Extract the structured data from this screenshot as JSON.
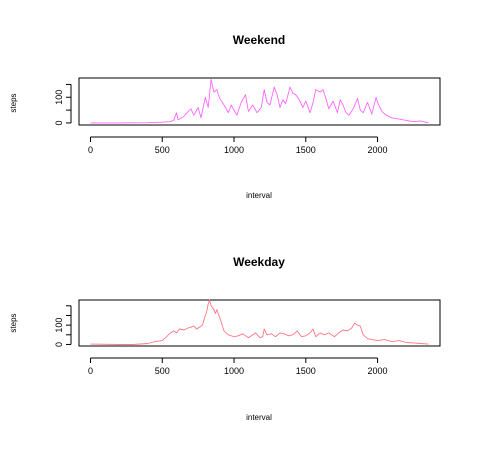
{
  "chart_data": [
    {
      "type": "line",
      "title": "Weekend",
      "xlabel": "interval",
      "ylabel": "steps",
      "xlim": [
        -80,
        2435
      ],
      "ylim": [
        -8,
        175
      ],
      "x_ticks": [
        0,
        500,
        1000,
        1500,
        2000
      ],
      "y_ticks": [
        0,
        50,
        100,
        150
      ],
      "y_tick_labels": [
        "0",
        "",
        "100",
        ""
      ],
      "series": [
        {
          "color": "#ff66ff",
          "x": [
            0,
            200,
            400,
            500,
            550,
            580,
            600,
            610,
            650,
            680,
            700,
            720,
            750,
            770,
            800,
            820,
            840,
            860,
            880,
            900,
            920,
            940,
            960,
            980,
            1000,
            1020,
            1050,
            1080,
            1100,
            1130,
            1160,
            1190,
            1210,
            1230,
            1250,
            1280,
            1300,
            1320,
            1340,
            1360,
            1390,
            1410,
            1430,
            1450,
            1480,
            1500,
            1530,
            1550,
            1570,
            1600,
            1620,
            1640,
            1660,
            1690,
            1720,
            1740,
            1760,
            1780,
            1800,
            1830,
            1860,
            1880,
            1900,
            1930,
            1960,
            1990,
            2000,
            2030,
            2060,
            2100,
            2150,
            2200,
            2250,
            2300,
            2355
          ],
          "y": [
            0,
            0,
            1,
            3,
            5,
            10,
            40,
            12,
            25,
            45,
            55,
            30,
            60,
            20,
            100,
            60,
            170,
            120,
            130,
            95,
            80,
            60,
            40,
            70,
            50,
            30,
            80,
            110,
            45,
            70,
            40,
            60,
            130,
            80,
            70,
            140,
            110,
            60,
            90,
            75,
            140,
            115,
            110,
            95,
            60,
            85,
            40,
            80,
            130,
            120,
            130,
            95,
            55,
            85,
            40,
            90,
            70,
            40,
            30,
            55,
            95,
            50,
            40,
            80,
            35,
            100,
            80,
            45,
            30,
            20,
            15,
            10,
            5,
            8,
            0
          ]
        }
      ]
    },
    {
      "type": "line",
      "title": "Weekday",
      "xlabel": "interval",
      "ylabel": "steps",
      "xlim": [
        -80,
        2435
      ],
      "ylim": [
        -8,
        230
      ],
      "x_ticks": [
        0,
        500,
        1000,
        1500,
        2000
      ],
      "y_ticks": [
        0,
        50,
        100,
        150,
        200
      ],
      "y_tick_labels": [
        "0",
        "",
        "100",
        "",
        ""
      ],
      "series": [
        {
          "color": "#ff7788",
          "x": [
            0,
            200,
            300,
            400,
            450,
            500,
            530,
            550,
            580,
            600,
            620,
            650,
            680,
            700,
            720,
            740,
            760,
            780,
            800,
            810,
            820,
            830,
            840,
            850,
            860,
            870,
            880,
            900,
            930,
            960,
            1000,
            1030,
            1060,
            1100,
            1150,
            1180,
            1200,
            1210,
            1230,
            1260,
            1290,
            1320,
            1350,
            1380,
            1410,
            1440,
            1470,
            1500,
            1530,
            1550,
            1570,
            1600,
            1630,
            1660,
            1700,
            1730,
            1760,
            1790,
            1820,
            1840,
            1860,
            1880,
            1900,
            1930,
            1960,
            2000,
            2050,
            2100,
            2150,
            2200,
            2250,
            2300,
            2355
          ],
          "y": [
            2,
            0,
            0,
            5,
            15,
            20,
            40,
            55,
            70,
            60,
            80,
            75,
            85,
            90,
            95,
            80,
            90,
            100,
            150,
            170,
            210,
            230,
            200,
            190,
            180,
            160,
            180,
            140,
            70,
            50,
            40,
            45,
            55,
            35,
            60,
            35,
            40,
            80,
            50,
            55,
            40,
            60,
            55,
            45,
            50,
            70,
            40,
            45,
            60,
            80,
            40,
            60,
            50,
            60,
            40,
            60,
            75,
            70,
            85,
            110,
            100,
            95,
            50,
            30,
            25,
            20,
            25,
            15,
            20,
            10,
            8,
            5,
            2
          ]
        }
      ]
    }
  ]
}
